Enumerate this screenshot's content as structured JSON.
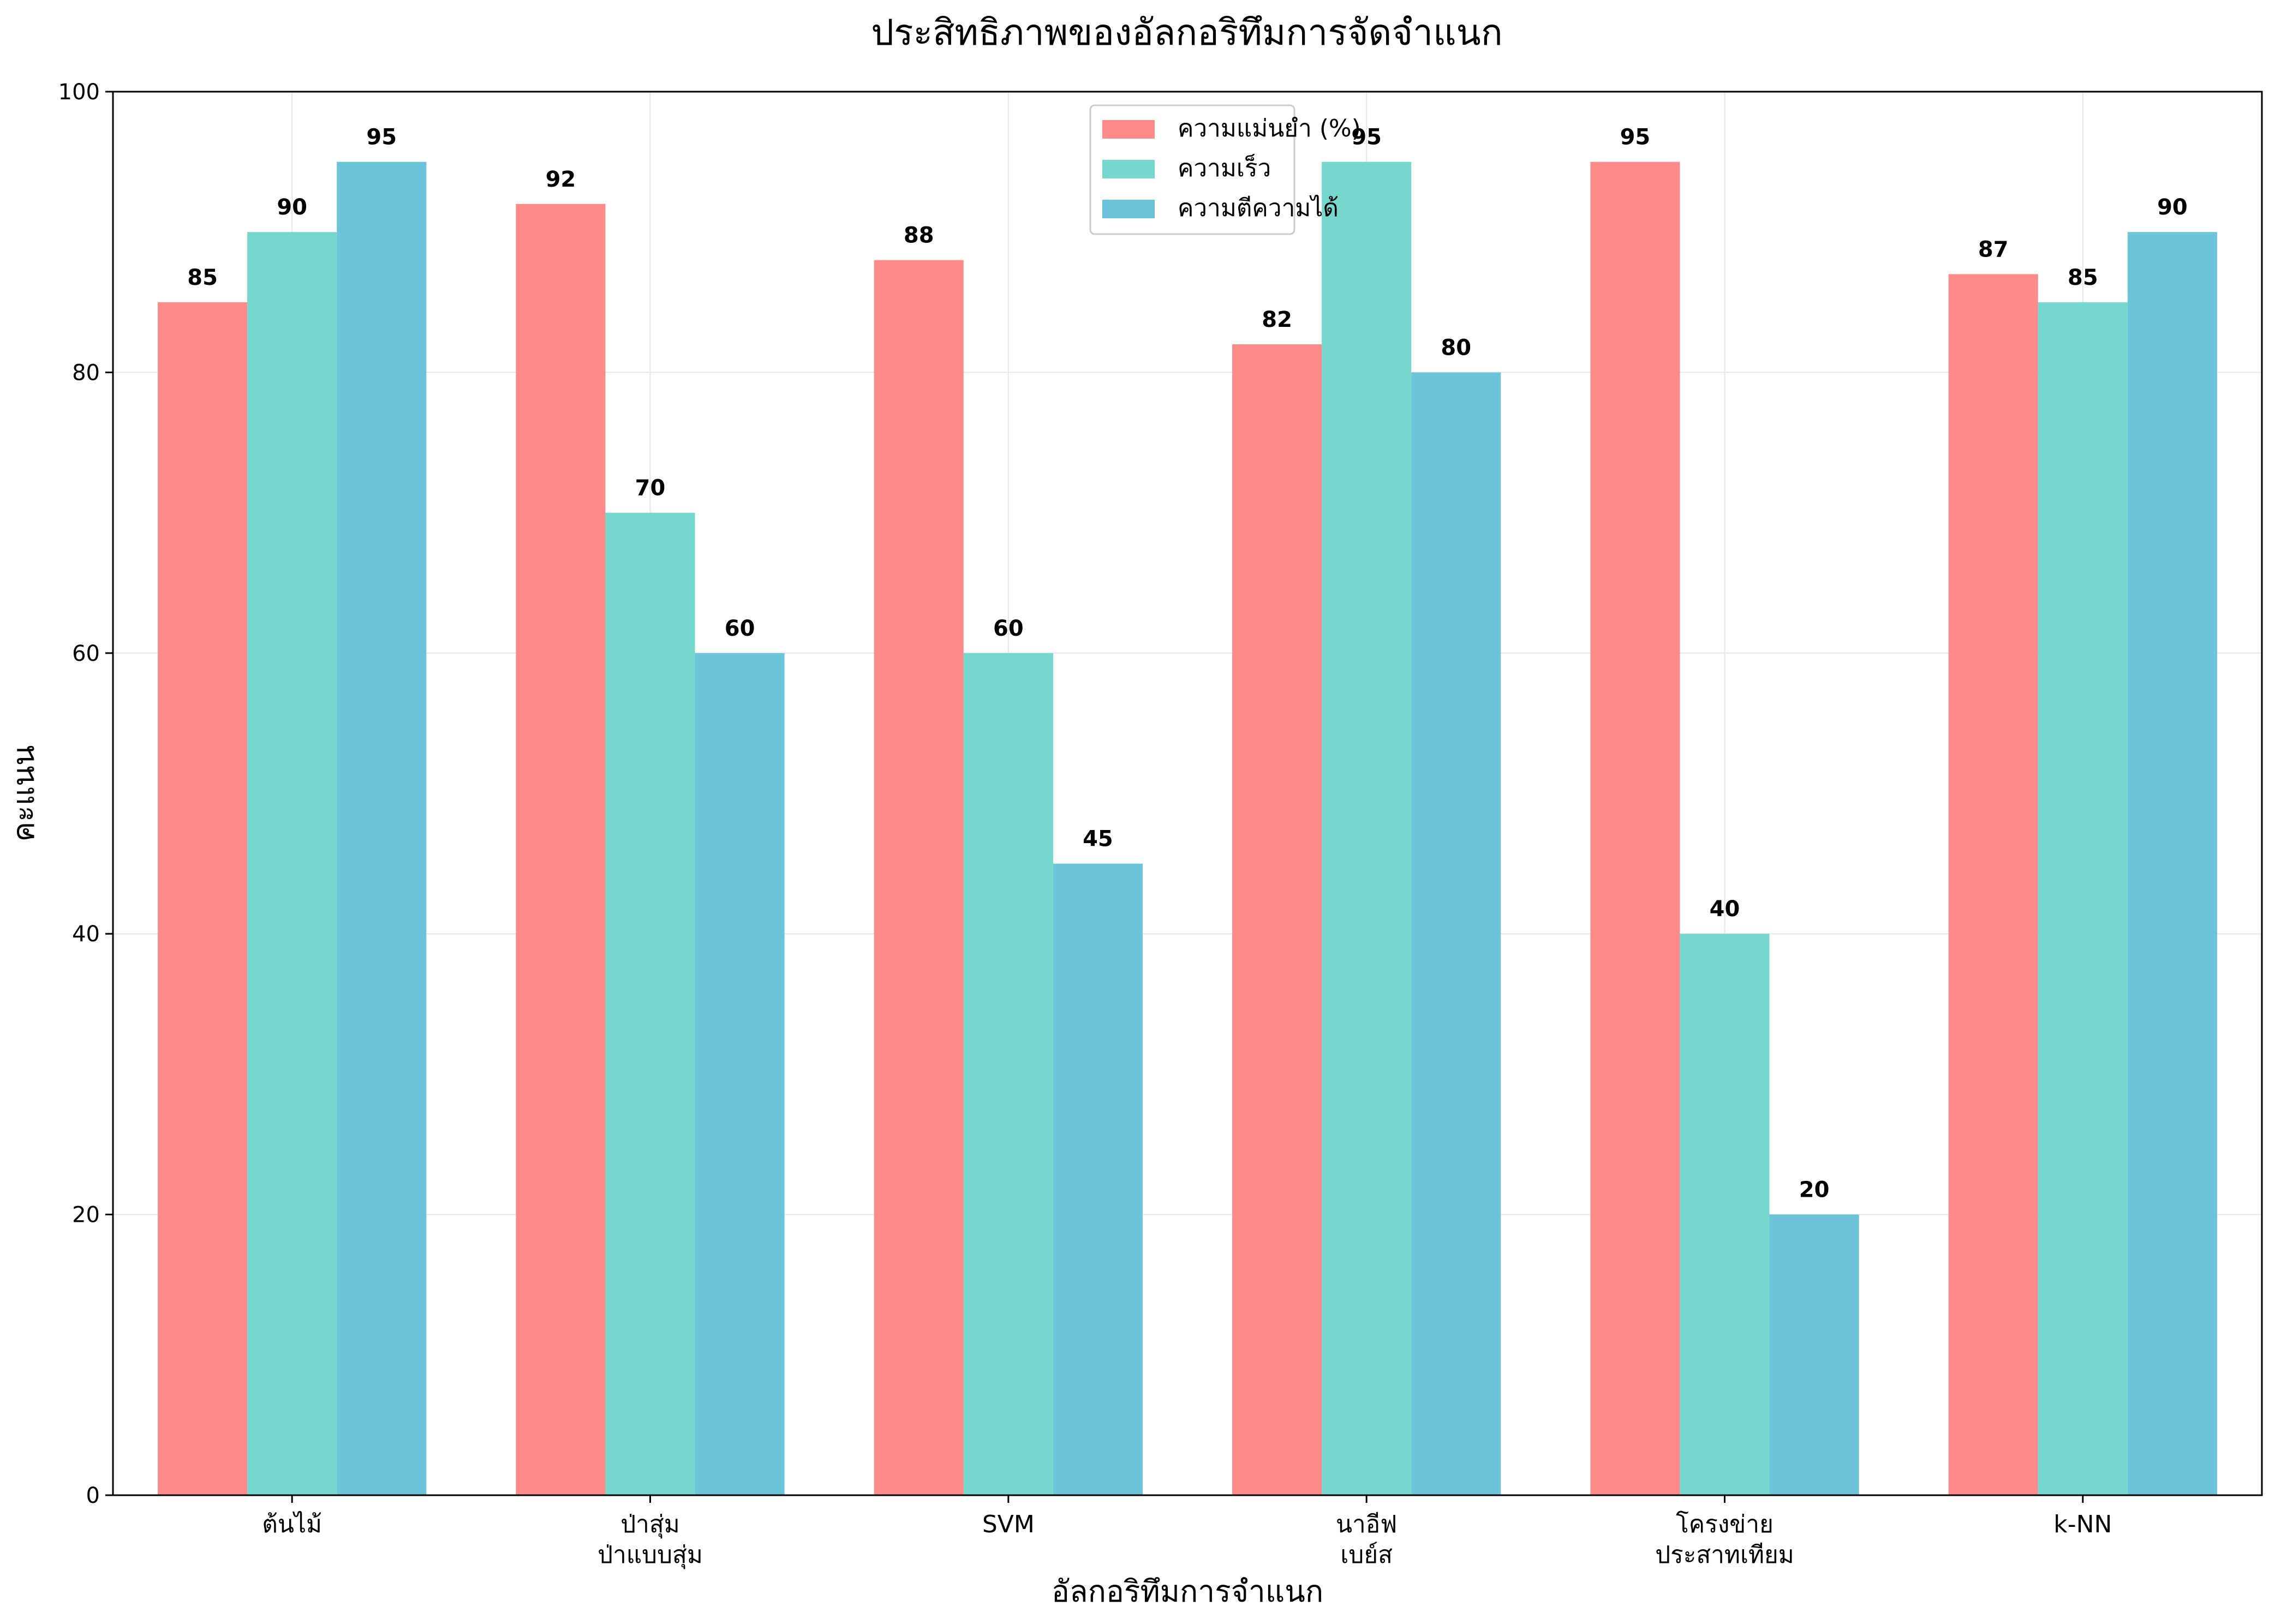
{
  "chart_data": {
    "type": "bar",
    "title": "ประสิทธิภาพของอัลกอริทึมการจัดจำแนก",
    "xlabel": "อัลกอริทึมการจำแนก",
    "ylabel": "คะแนน",
    "ylim": [
      0,
      100
    ],
    "yticks": [
      0,
      20,
      40,
      60,
      80,
      100
    ],
    "grid": true,
    "legend_position": "top-center",
    "categories": [
      [
        "ต้นไม้"
      ],
      [
        "ป่าสุ่ม",
        "ป่าแบบสุ่ม"
      ],
      [
        "SVM"
      ],
      [
        "นาอีฟ",
        "เบย์ส"
      ],
      [
        "โครงข่าย",
        "ประสาทเทียม"
      ],
      [
        "k-NN"
      ]
    ],
    "series": [
      {
        "name": "ความแม่นยำ (%)",
        "color": "#FF8A8A",
        "values": [
          85,
          92,
          88,
          82,
          95,
          87
        ]
      },
      {
        "name": "ความเร็ว",
        "color": "#76D7CF",
        "values": [
          90,
          70,
          60,
          95,
          40,
          85
        ]
      },
      {
        "name": "ความตีความได้",
        "color": "#6BC4D9",
        "values": [
          95,
          60,
          45,
          80,
          20,
          90
        ]
      }
    ]
  }
}
